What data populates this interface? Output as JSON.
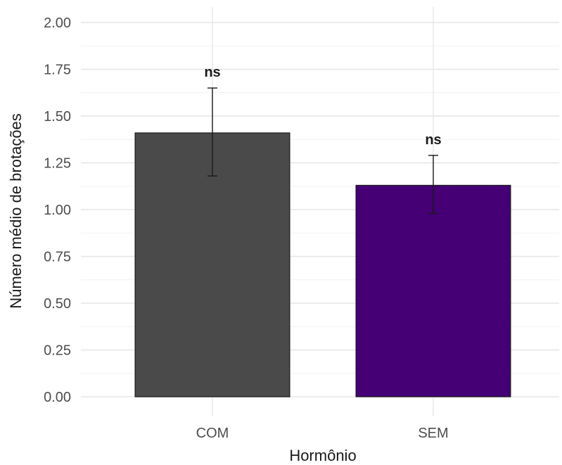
{
  "chart_data": {
    "type": "bar",
    "title": "",
    "xlabel": "Hormônio",
    "ylabel": "Número médio de brotações",
    "categories": [
      "COM",
      "SEM"
    ],
    "values": [
      1.41,
      1.13
    ],
    "error_low": [
      1.18,
      0.98
    ],
    "error_high": [
      1.65,
      1.29
    ],
    "annotations": [
      "ns",
      "ns"
    ],
    "colors": [
      "#4a4a4a",
      "#440074"
    ],
    "ylim": [
      0,
      2.0
    ],
    "yticks": [
      0.0,
      0.25,
      0.5,
      0.75,
      1.0,
      1.25,
      1.5,
      1.75,
      2.0
    ],
    "ytick_labels": [
      "0.00",
      "0.25",
      "0.50",
      "0.75",
      "1.00",
      "1.25",
      "1.50",
      "1.75",
      "2.00"
    ],
    "grid": true,
    "legend": "none"
  }
}
